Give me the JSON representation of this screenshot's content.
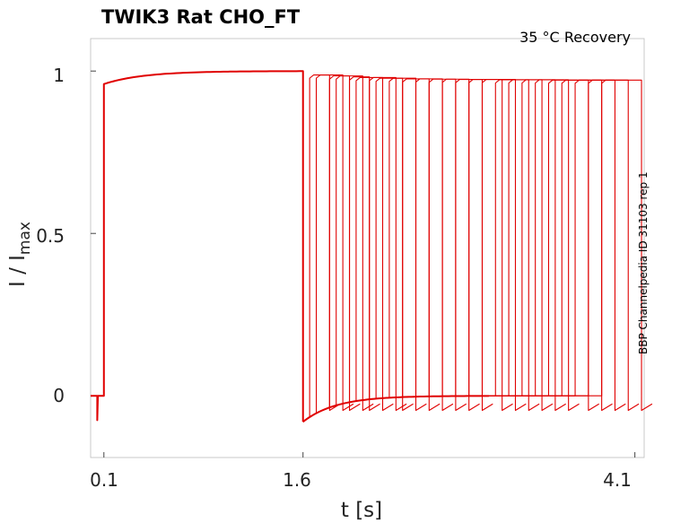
{
  "chart_data": {
    "type": "line",
    "title": "TWIK3  Rat  CHO_FT",
    "subtitle": "35 °C  Recovery",
    "side_note": "BBP Channelpedia ID 31103 rep 1",
    "xlabel": "t [s]",
    "ylabel_main": "I / I",
    "ylabel_sub": "max",
    "x_ticks": [
      0.1,
      1.6,
      4.1
    ],
    "x_tick_labels": [
      "0.1",
      "1.6",
      "4.1"
    ],
    "y_ticks": [
      0,
      0.5,
      1
    ],
    "y_tick_labels": [
      "0",
      "0.5",
      "1"
    ],
    "xlim": [
      0.0,
      4.17
    ],
    "ylim": [
      -0.19,
      1.1
    ],
    "grid": false,
    "series_color": "#e00000",
    "baseline_value": 0,
    "prepulse": {
      "start": 0.1,
      "end": 1.6,
      "initial_dip": -0.075,
      "jump_value": 0.96,
      "plateau_value": 1.0
    },
    "recovery_dip": -0.08,
    "sweeps": [
      {
        "test_start": 1.65,
        "test_end": 1.8,
        "peak": 0.988
      },
      {
        "test_start": 1.7,
        "test_end": 1.9,
        "peak": 0.988
      },
      {
        "test_start": 1.8,
        "test_end": 1.95,
        "peak": 0.985
      },
      {
        "test_start": 1.85,
        "test_end": 2.05,
        "peak": 0.985
      },
      {
        "test_start": 1.95,
        "test_end": 2.1,
        "peak": 0.982
      },
      {
        "test_start": 2.0,
        "test_end": 2.2,
        "peak": 0.98
      },
      {
        "test_start": 2.1,
        "test_end": 2.3,
        "peak": 0.98
      },
      {
        "test_start": 2.15,
        "test_end": 2.35,
        "peak": 0.978
      },
      {
        "test_start": 2.25,
        "test_end": 2.45,
        "peak": 0.978
      },
      {
        "test_start": 2.35,
        "test_end": 2.55,
        "peak": 0.976
      },
      {
        "test_start": 2.45,
        "test_end": 2.65,
        "peak": 0.976
      },
      {
        "test_start": 2.55,
        "test_end": 2.75,
        "peak": 0.975
      },
      {
        "test_start": 2.65,
        "test_end": 2.85,
        "peak": 0.975
      },
      {
        "test_start": 2.75,
        "test_end": 2.95,
        "peak": 0.974
      },
      {
        "test_start": 2.85,
        "test_end": 3.1,
        "peak": 0.974
      },
      {
        "test_start": 2.95,
        "test_end": 3.2,
        "peak": 0.974
      },
      {
        "test_start": 3.05,
        "test_end": 3.3,
        "peak": 0.973
      },
      {
        "test_start": 3.15,
        "test_end": 3.4,
        "peak": 0.973
      },
      {
        "test_start": 3.25,
        "test_end": 3.5,
        "peak": 0.973
      },
      {
        "test_start": 3.35,
        "test_end": 3.6,
        "peak": 0.973
      },
      {
        "test_start": 3.45,
        "test_end": 3.75,
        "peak": 0.972
      },
      {
        "test_start": 3.55,
        "test_end": 3.85,
        "peak": 0.972
      },
      {
        "test_start": 3.65,
        "test_end": 3.95,
        "peak": 0.972
      },
      {
        "test_start": 3.75,
        "test_end": 4.05,
        "peak": 0.972
      },
      {
        "test_start": 3.85,
        "test_end": 4.15,
        "peak": 0.972
      }
    ]
  }
}
